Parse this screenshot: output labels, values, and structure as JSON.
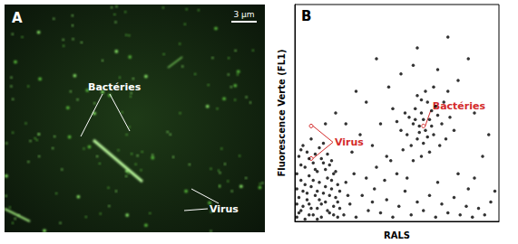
{
  "panel_a": {
    "label": "A",
    "scale_bar": "3 µm",
    "annotations": [
      "Bactéries",
      "Virus"
    ]
  },
  "chart_data": {
    "label": "B",
    "type": "scatter",
    "xlabel": "RALS",
    "ylabel": "Fluorescence Verte (FL1)",
    "xlim": [
      0,
      100
    ],
    "ylim": [
      0,
      100
    ],
    "tick_labels": false,
    "grid": false,
    "color": "#000000",
    "points": [
      [
        1,
        2
      ],
      [
        3,
        5
      ],
      [
        5,
        1
      ],
      [
        7,
        8
      ],
      [
        9,
        3
      ],
      [
        11,
        6
      ],
      [
        13,
        2
      ],
      [
        15,
        9
      ],
      [
        17,
        4
      ],
      [
        19,
        7
      ],
      [
        21,
        2
      ],
      [
        2,
        11
      ],
      [
        4,
        14
      ],
      [
        6,
        10
      ],
      [
        8,
        16
      ],
      [
        10,
        12
      ],
      [
        12,
        18
      ],
      [
        14,
        13
      ],
      [
        16,
        20
      ],
      [
        18,
        15
      ],
      [
        20,
        11
      ],
      [
        1,
        22
      ],
      [
        3,
        19
      ],
      [
        5,
        25
      ],
      [
        7,
        21
      ],
      [
        9,
        27
      ],
      [
        11,
        23
      ],
      [
        13,
        29
      ],
      [
        15,
        24
      ],
      [
        17,
        26
      ],
      [
        19,
        22
      ],
      [
        21,
        17
      ],
      [
        2,
        30
      ],
      [
        6,
        32
      ],
      [
        10,
        31
      ],
      [
        4,
        35
      ],
      [
        8,
        38
      ],
      [
        12,
        34
      ],
      [
        14,
        36
      ],
      [
        16,
        31
      ],
      [
        1,
        8
      ],
      [
        3,
        26
      ],
      [
        5,
        17
      ],
      [
        7,
        3
      ],
      [
        9,
        19
      ],
      [
        11,
        14
      ],
      [
        13,
        8
      ],
      [
        15,
        16
      ],
      [
        17,
        12
      ],
      [
        19,
        3
      ],
      [
        21,
        9
      ],
      [
        2,
        4
      ],
      [
        4,
        7
      ],
      [
        6,
        13
      ],
      [
        8,
        6
      ],
      [
        10,
        24
      ],
      [
        12,
        10
      ],
      [
        14,
        27
      ],
      [
        16,
        5
      ],
      [
        18,
        28
      ],
      [
        20,
        23
      ],
      [
        22,
        14
      ],
      [
        22,
        6
      ],
      [
        1,
        15
      ],
      [
        3,
        33
      ],
      [
        7,
        29
      ],
      [
        11,
        1
      ],
      [
        18,
        19
      ],
      [
        55,
        40
      ],
      [
        58,
        45
      ],
      [
        60,
        38
      ],
      [
        62,
        50
      ],
      [
        64,
        42
      ],
      [
        66,
        47
      ],
      [
        68,
        40
      ],
      [
        59,
        52
      ],
      [
        61,
        44
      ],
      [
        63,
        36
      ],
      [
        65,
        55
      ],
      [
        67,
        44
      ],
      [
        70,
        49
      ],
      [
        57,
        35
      ],
      [
        56,
        48
      ],
      [
        60,
        58
      ],
      [
        64,
        60
      ],
      [
        69,
        53
      ],
      [
        72,
        45
      ],
      [
        52,
        42
      ],
      [
        54,
        50
      ],
      [
        74,
        38
      ],
      [
        73,
        55
      ],
      [
        62,
        30
      ],
      [
        66,
        32
      ],
      [
        58,
        28
      ],
      [
        50,
        46
      ],
      [
        76,
        48
      ],
      [
        71,
        35
      ],
      [
        63,
        47
      ],
      [
        61,
        41
      ],
      [
        65,
        39
      ],
      [
        67,
        51
      ],
      [
        59,
        47
      ],
      [
        62,
        56
      ],
      [
        68,
        62
      ],
      [
        53,
        33
      ],
      [
        78,
        42
      ],
      [
        48,
        52
      ],
      [
        75,
        60
      ],
      [
        24,
        3
      ],
      [
        27,
        8
      ],
      [
        30,
        2
      ],
      [
        33,
        12
      ],
      [
        36,
        5
      ],
      [
        39,
        15
      ],
      [
        42,
        4
      ],
      [
        45,
        10
      ],
      [
        48,
        2
      ],
      [
        51,
        7
      ],
      [
        54,
        14
      ],
      [
        57,
        3
      ],
      [
        60,
        9
      ],
      [
        63,
        5
      ],
      [
        66,
        12
      ],
      [
        69,
        2
      ],
      [
        72,
        8
      ],
      [
        75,
        4
      ],
      [
        78,
        11
      ],
      [
        81,
        3
      ],
      [
        84,
        7
      ],
      [
        87,
        2
      ],
      [
        90,
        6
      ],
      [
        93,
        3
      ],
      [
        96,
        9
      ],
      [
        25,
        18
      ],
      [
        29,
        22
      ],
      [
        35,
        20
      ],
      [
        40,
        25
      ],
      [
        44,
        19
      ],
      [
        47,
        28
      ],
      [
        50,
        22
      ],
      [
        55,
        20
      ],
      [
        70,
        18
      ],
      [
        80,
        22
      ],
      [
        85,
        15
      ],
      [
        28,
        32
      ],
      [
        32,
        40
      ],
      [
        38,
        35
      ],
      [
        42,
        45
      ],
      [
        45,
        30
      ],
      [
        25,
        45
      ],
      [
        35,
        55
      ],
      [
        46,
        62
      ],
      [
        52,
        68
      ],
      [
        58,
        72
      ],
      [
        70,
        70
      ],
      [
        80,
        65
      ],
      [
        88,
        50
      ],
      [
        92,
        30
      ],
      [
        30,
        60
      ],
      [
        20,
        50
      ],
      [
        15,
        45
      ],
      [
        40,
        75
      ],
      [
        60,
        80
      ],
      [
        75,
        85
      ],
      [
        85,
        75
      ],
      [
        95,
        40
      ],
      [
        26,
        12
      ],
      [
        38,
        9
      ],
      [
        88,
        20
      ],
      [
        98,
        14
      ]
    ],
    "annotations": [
      {
        "text": "Bactéries",
        "points": [
          [
            63,
            44
          ]
        ]
      },
      {
        "text": "Virus",
        "points": [
          [
            8,
            44
          ],
          [
            8,
            29
          ]
        ]
      }
    ]
  }
}
